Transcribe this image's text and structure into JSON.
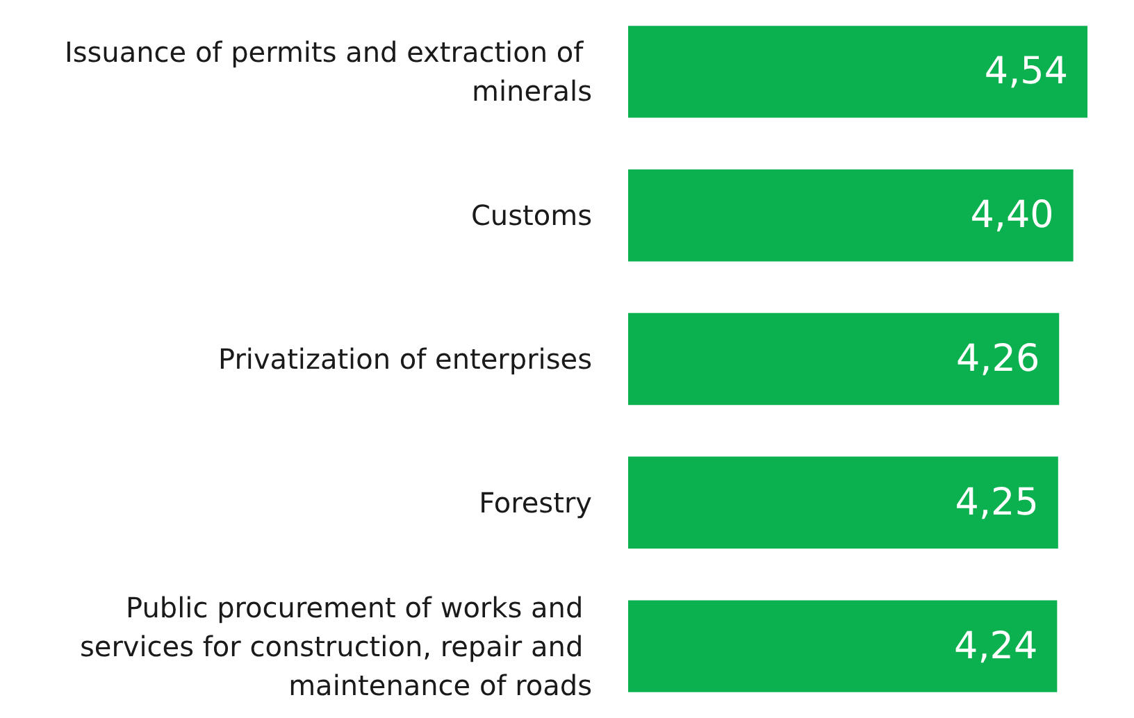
{
  "chart_data": {
    "type": "bar",
    "orientation": "horizontal",
    "categories": [
      "Issuance of permits and extraction of minerals",
      "Customs",
      "Privatization of enterprises",
      "Forestry",
      "Public procurement of works and services for construction, repair and maintenance of roads"
    ],
    "values": [
      4.54,
      4.4,
      4.26,
      4.25,
      4.24
    ],
    "value_labels": [
      "4,54",
      "4,40",
      "4,26",
      "4,25",
      "4,24"
    ],
    "color": "#0bb04f"
  }
}
